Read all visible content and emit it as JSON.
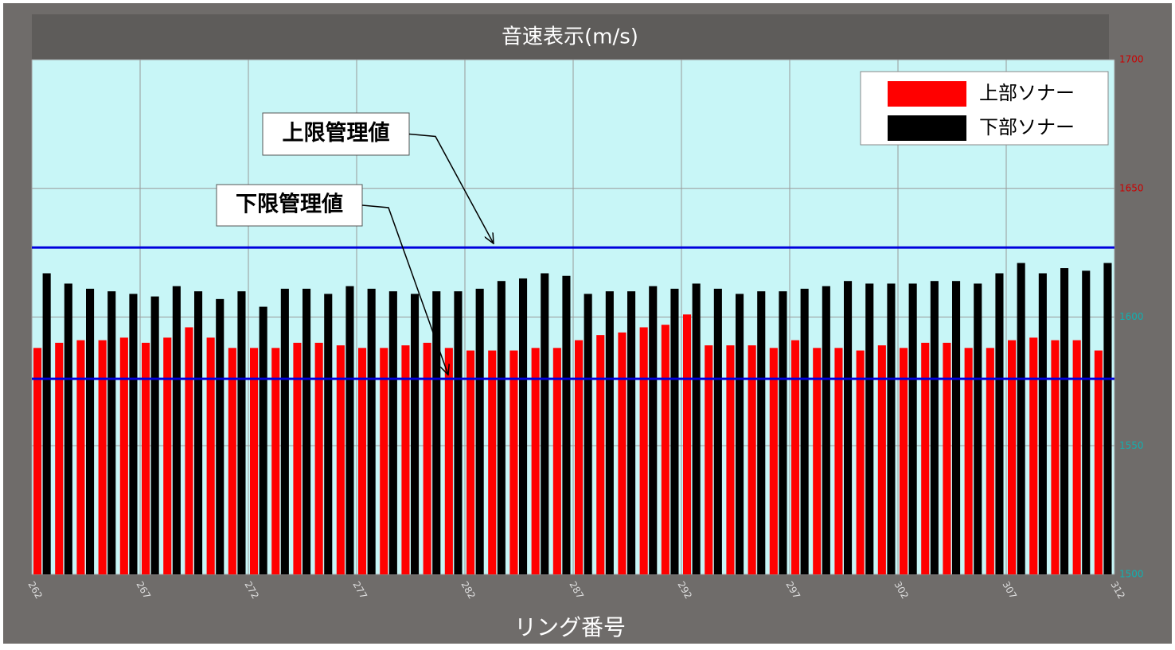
{
  "chart_data": {
    "type": "bar",
    "title": "音速表示(m/s)",
    "x_label": "リング番号",
    "x": [
      262,
      263,
      264,
      265,
      266,
      267,
      268,
      269,
      270,
      271,
      272,
      273,
      274,
      275,
      276,
      277,
      278,
      279,
      280,
      281,
      282,
      283,
      284,
      285,
      286,
      287,
      288,
      289,
      290,
      291,
      292,
      293,
      294,
      295,
      296,
      297,
      298,
      299,
      300,
      301,
      302,
      303,
      304,
      305,
      306,
      307,
      308,
      309,
      310,
      311
    ],
    "series": [
      {
        "name": "上部ソナー",
        "color": "#ff0000",
        "values": [
          1588,
          1590,
          1591,
          1591,
          1592,
          1590,
          1592,
          1596,
          1592,
          1588,
          1588,
          1588,
          1590,
          1590,
          1589,
          1588,
          1588,
          1589,
          1590,
          1588,
          1587,
          1587,
          1587,
          1588,
          1588,
          1591,
          1593,
          1594,
          1596,
          1597,
          1601,
          1589,
          1589,
          1589,
          1588,
          1591,
          1588,
          1588,
          1587,
          1589,
          1588,
          1590,
          1590,
          1588,
          1588,
          1591,
          1592,
          1591,
          1591,
          1587
        ]
      },
      {
        "name": "下部ソナー",
        "color": "#000000",
        "values": [
          1617,
          1613,
          1611,
          1610,
          1609,
          1608,
          1612,
          1610,
          1607,
          1610,
          1604,
          1611,
          1611,
          1609,
          1612,
          1611,
          1610,
          1609,
          1610,
          1610,
          1611,
          1614,
          1615,
          1617,
          1616,
          1609,
          1610,
          1610,
          1612,
          1611,
          1613,
          1611,
          1609,
          1610,
          1610,
          1611,
          1612,
          1614,
          1613,
          1613,
          1613,
          1614,
          1614,
          1613,
          1617,
          1621,
          1617,
          1619,
          1618,
          1621
        ]
      }
    ],
    "xlim": [
      262,
      312
    ],
    "xticks": [
      262,
      267,
      272,
      277,
      282,
      287,
      292,
      297,
      302,
      307,
      312
    ],
    "ylim": [
      1500,
      1700
    ],
    "yticks": [
      1500,
      1550,
      1600,
      1650,
      1700
    ],
    "ytick_colors": [
      "#10b0b0",
      "#10b0b0",
      "#10b0b0",
      "#cc0000",
      "#cc0000"
    ],
    "grid": true,
    "legend": "upper right",
    "limit_lines": [
      {
        "label": "上限管理値",
        "value": 1627,
        "color": "#0000dd"
      },
      {
        "label": "下限管理値",
        "value": 1576,
        "color": "#0000dd"
      }
    ]
  }
}
